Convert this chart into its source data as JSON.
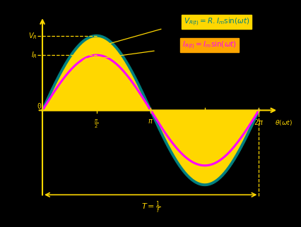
{
  "background_color": "#000000",
  "plot_bg_color": "#000000",
  "voltage_amplitude": 1.35,
  "current_amplitude": 1.0,
  "fill_color": "#FFD700",
  "voltage_line_color": "#008080",
  "current_line_color": "#FF00FF",
  "axis_color": "#FFD700",
  "vR_box_color": "#FFD700",
  "vR_text_color": "#008080",
  "iR_box_color": "#FFA500",
  "iR_text_color": "#FF00FF",
  "xlim_left": -0.18,
  "xlim_right": 7.0,
  "ylim_bottom": -1.62,
  "ylim_top": 1.75
}
